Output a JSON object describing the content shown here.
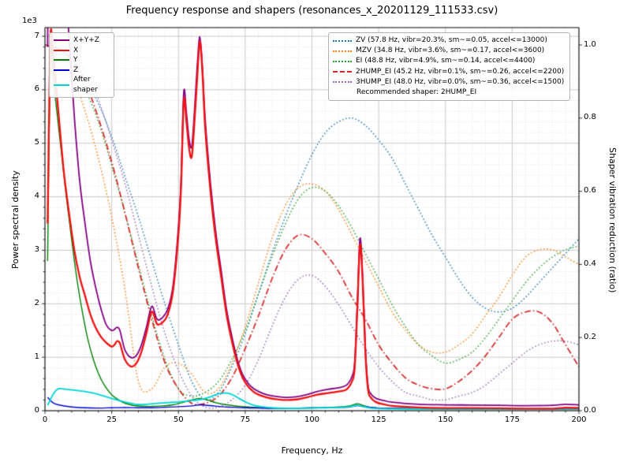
{
  "chart_data": {
    "type": "line",
    "title": "Frequency response and shapers (resonances_x_20201129_111533.csv)",
    "xlabel": "Frequency, Hz",
    "ylabel_left": "Power spectral density",
    "ylabel_right": "Shaper vibration reduction (ratio)",
    "offset_text": "1e3",
    "grid": true,
    "legend_note": "Recommended shaper: 2HUMP_EI",
    "xlim": [
      0,
      200
    ],
    "ylim_left": [
      0,
      7000
    ],
    "ylim_right": [
      0,
      1.0
    ],
    "x_ticks": {
      "values": [
        0,
        25,
        50,
        75,
        100,
        125,
        150,
        175,
        200
      ],
      "labels": [
        "0",
        "25",
        "50",
        "75",
        "100",
        "125",
        "150",
        "175",
        "200"
      ]
    },
    "y_ticks_left": {
      "values": [
        0,
        1000,
        2000,
        3000,
        4000,
        5000,
        6000,
        7000
      ],
      "labels": [
        "0",
        "1",
        "2",
        "3",
        "4",
        "5",
        "6",
        "7"
      ]
    },
    "y_ticks_right": {
      "values": [
        0,
        0.2,
        0.4,
        0.6,
        0.8,
        1.0
      ],
      "labels": [
        "0.0",
        "0.2",
        "0.4",
        "0.6",
        "0.8",
        "1.0"
      ]
    },
    "psd_series": [
      {
        "name": "X+Y+Z",
        "color": "#800080",
        "style": "solid",
        "width": 1.8,
        "x": [
          1,
          2,
          3,
          5,
          7,
          9,
          11,
          13,
          15,
          17,
          19,
          21,
          23,
          25,
          26,
          27,
          28,
          29,
          30,
          32,
          34,
          36,
          38,
          40,
          42,
          44,
          46,
          48,
          50,
          51,
          52,
          53,
          54,
          55,
          56,
          57,
          58,
          59,
          60,
          62,
          64,
          66,
          68,
          70,
          72,
          74,
          76,
          78,
          80,
          83,
          86,
          90,
          94,
          98,
          102,
          106,
          110,
          113,
          115,
          116,
          117,
          118,
          119,
          120,
          121,
          122,
          124,
          127,
          130,
          140,
          150,
          160,
          170,
          180,
          190,
          195,
          200
        ],
        "y": [
          6800,
          13600,
          12500,
          10500,
          8500,
          7000,
          5500,
          4300,
          3500,
          2800,
          2300,
          1900,
          1600,
          1500,
          1520,
          1560,
          1510,
          1310,
          1130,
          1000,
          1020,
          1210,
          1560,
          1950,
          1710,
          1740,
          1900,
          2350,
          3440,
          4350,
          5960,
          5560,
          5070,
          4940,
          5600,
          6420,
          6990,
          6400,
          5450,
          4250,
          3330,
          2620,
          1900,
          1390,
          970,
          680,
          520,
          420,
          360,
          300,
          270,
          250,
          260,
          300,
          360,
          400,
          430,
          480,
          640,
          900,
          2000,
          3220,
          2500,
          1180,
          470,
          320,
          230,
          190,
          160,
          120,
          110,
          105,
          100,
          95,
          100,
          120,
          110
        ]
      },
      {
        "name": "X",
        "color": "#ee1111",
        "style": "solid",
        "width": 2.3,
        "x": [
          1,
          2,
          3,
          5,
          7,
          9,
          11,
          13,
          15,
          17,
          19,
          21,
          23,
          25,
          26,
          27,
          28,
          29,
          30,
          32,
          34,
          36,
          38,
          40,
          42,
          44,
          46,
          48,
          50,
          51,
          52,
          53,
          54,
          55,
          56,
          57,
          58,
          59,
          60,
          62,
          64,
          66,
          68,
          70,
          72,
          74,
          76,
          78,
          80,
          83,
          86,
          90,
          94,
          98,
          102,
          106,
          110,
          113,
          115,
          116,
          117,
          118,
          119,
          120,
          121,
          122,
          124,
          127,
          130,
          140,
          150,
          160,
          170,
          180,
          190,
          195,
          200
        ],
        "y": [
          3500,
          6900,
          6700,
          5600,
          4500,
          3700,
          3000,
          2500,
          2150,
          1800,
          1550,
          1380,
          1270,
          1200,
          1230,
          1300,
          1270,
          1100,
          950,
          830,
          870,
          1080,
          1450,
          1850,
          1620,
          1650,
          1800,
          2250,
          3300,
          4200,
          5800,
          5400,
          4900,
          4750,
          5400,
          6200,
          6900,
          6300,
          5300,
          4100,
          3200,
          2500,
          1800,
          1300,
          900,
          620,
          460,
          360,
          300,
          250,
          220,
          200,
          210,
          250,
          300,
          330,
          360,
          400,
          550,
          800,
          1900,
          3100,
          2400,
          1100,
          400,
          250,
          160,
          120,
          90,
          60,
          50,
          50,
          45,
          40,
          40,
          55,
          50
        ]
      },
      {
        "name": "Y",
        "color": "#008000",
        "style": "solid",
        "width": 1.4,
        "x": [
          1,
          2,
          3,
          4,
          6,
          8,
          10,
          12,
          14,
          16,
          18,
          20,
          22,
          25,
          28,
          30,
          33,
          36,
          40,
          44,
          48,
          52,
          55,
          58,
          61,
          64,
          68,
          72,
          76,
          80,
          85,
          90,
          95,
          100,
          105,
          110,
          114,
          117,
          119,
          122,
          126,
          130,
          140,
          150,
          160,
          170,
          180,
          190,
          200
        ],
        "y": [
          2800,
          6600,
          6300,
          5800,
          4900,
          4000,
          3200,
          2450,
          1850,
          1350,
          980,
          700,
          500,
          300,
          190,
          140,
          100,
          85,
          80,
          90,
          110,
          160,
          200,
          230,
          200,
          150,
          110,
          85,
          70,
          60,
          50,
          48,
          50,
          55,
          60,
          70,
          90,
          130,
          100,
          60,
          45,
          40,
          35,
          32,
          30,
          30,
          30,
          35,
          40
        ]
      },
      {
        "name": "Z",
        "color": "#0000cc",
        "style": "solid",
        "width": 1.4,
        "x": [
          1,
          3,
          5,
          10,
          15,
          20,
          25,
          30,
          35,
          40,
          45,
          50,
          55,
          58,
          62,
          66,
          70,
          75,
          80,
          85,
          90,
          95,
          100,
          105,
          110,
          114,
          117,
          119,
          125,
          130,
          140,
          150,
          160,
          170,
          180,
          190,
          200
        ],
        "y": [
          250,
          150,
          110,
          70,
          55,
          50,
          55,
          60,
          55,
          55,
          65,
          75,
          90,
          110,
          95,
          75,
          65,
          55,
          50,
          45,
          45,
          48,
          52,
          56,
          60,
          70,
          95,
          80,
          50,
          45,
          40,
          35,
          32,
          30,
          30,
          32,
          35
        ]
      },
      {
        "name": "After shaper",
        "color": "#00d4d4",
        "style": "solid",
        "width": 1.8,
        "x": [
          1,
          3,
          5,
          8,
          11,
          14,
          17,
          20,
          23,
          26,
          29,
          32,
          35,
          38,
          41,
          44,
          47,
          50,
          53,
          56,
          59,
          62,
          64,
          66,
          68,
          70,
          72,
          75,
          78,
          81,
          85,
          90,
          95,
          100,
          105,
          110,
          114,
          117,
          119,
          122,
          126,
          130,
          140,
          150,
          160,
          170,
          180,
          190,
          200
        ],
        "y": [
          100,
          300,
          410,
          400,
          385,
          365,
          340,
          305,
          260,
          215,
          175,
          140,
          115,
          120,
          135,
          145,
          155,
          165,
          180,
          195,
          215,
          260,
          300,
          325,
          330,
          305,
          250,
          165,
          105,
          75,
          55,
          45,
          45,
          50,
          55,
          60,
          75,
          100,
          80,
          50,
          40,
          35,
          32,
          30,
          28,
          28,
          28,
          30,
          32
        ]
      }
    ],
    "shaper_x": [
      0,
      5,
      10,
      15,
      20,
      25,
      30,
      35,
      40,
      45,
      50,
      55,
      60,
      65,
      70,
      75,
      80,
      85,
      90,
      95,
      100,
      105,
      110,
      115,
      120,
      125,
      130,
      135,
      140,
      145,
      150,
      155,
      160,
      165,
      170,
      175,
      180,
      185,
      190,
      195,
      200
    ],
    "shaper_series": [
      {
        "name": "ZV",
        "label": "ZV (57.8 Hz, vibr=20.3%, sm~=0.05, accel<=13000)",
        "color": "#1f77b4",
        "style": "dotted",
        "width": 1.4,
        "y": [
          1.0,
          0.99,
          0.96,
          0.91,
          0.84,
          0.75,
          0.64,
          0.53,
          0.41,
          0.29,
          0.18,
          0.08,
          0.03,
          0.05,
          0.12,
          0.21,
          0.32,
          0.43,
          0.53,
          0.62,
          0.7,
          0.76,
          0.79,
          0.8,
          0.78,
          0.74,
          0.69,
          0.62,
          0.55,
          0.48,
          0.42,
          0.36,
          0.31,
          0.28,
          0.27,
          0.28,
          0.31,
          0.35,
          0.39,
          0.43,
          0.47
        ]
      },
      {
        "name": "MZV",
        "label": "MZV (34.8 Hz, vibr=3.6%, sm~=0.17, accel<=3600)",
        "color": "#ff7f0e",
        "style": "dotted",
        "width": 1.4,
        "y": [
          1.0,
          0.98,
          0.92,
          0.82,
          0.69,
          0.53,
          0.33,
          0.08,
          0.06,
          0.12,
          0.13,
          0.1,
          0.05,
          0.06,
          0.13,
          0.23,
          0.35,
          0.47,
          0.56,
          0.61,
          0.62,
          0.6,
          0.55,
          0.48,
          0.41,
          0.34,
          0.27,
          0.22,
          0.18,
          0.16,
          0.16,
          0.18,
          0.21,
          0.26,
          0.31,
          0.37,
          0.42,
          0.44,
          0.44,
          0.42,
          0.4
        ]
      },
      {
        "name": "EI",
        "label": "EI (48.8 Hz, vibr=4.9%, sm~=0.14, accel<=4400)",
        "color": "#2ca02c",
        "style": "dotted",
        "width": 1.4,
        "y": [
          1.0,
          0.99,
          0.95,
          0.88,
          0.79,
          0.67,
          0.54,
          0.4,
          0.26,
          0.14,
          0.06,
          0.04,
          0.05,
          0.08,
          0.14,
          0.22,
          0.32,
          0.42,
          0.51,
          0.58,
          0.61,
          0.6,
          0.56,
          0.5,
          0.43,
          0.36,
          0.29,
          0.23,
          0.18,
          0.15,
          0.13,
          0.14,
          0.16,
          0.2,
          0.25,
          0.3,
          0.35,
          0.39,
          0.42,
          0.44,
          0.45
        ]
      },
      {
        "name": "2HUMP_EI",
        "label": "2HUMP_EI (45.2 Hz, vibr=0.1%, sm~=0.26, accel<=2200)",
        "color": "#d62728",
        "style": "dashdot",
        "width": 1.7,
        "y": [
          1.0,
          0.99,
          0.96,
          0.9,
          0.8,
          0.68,
          0.54,
          0.39,
          0.25,
          0.13,
          0.06,
          0.02,
          0.02,
          0.04,
          0.09,
          0.17,
          0.26,
          0.36,
          0.44,
          0.48,
          0.47,
          0.43,
          0.38,
          0.31,
          0.25,
          0.18,
          0.13,
          0.09,
          0.07,
          0.06,
          0.06,
          0.08,
          0.11,
          0.15,
          0.2,
          0.25,
          0.27,
          0.27,
          0.24,
          0.18,
          0.12
        ]
      },
      {
        "name": "3HUMP_EI",
        "label": "3HUMP_EI (48.0 Hz, vibr=0.0%, sm~=0.36, accel<=1500)",
        "color": "#9467bd",
        "style": "dotted",
        "width": 1.4,
        "y": [
          1.0,
          0.99,
          0.97,
          0.93,
          0.85,
          0.74,
          0.62,
          0.48,
          0.34,
          0.21,
          0.11,
          0.04,
          0.01,
          0.01,
          0.03,
          0.07,
          0.14,
          0.23,
          0.31,
          0.36,
          0.37,
          0.34,
          0.29,
          0.23,
          0.17,
          0.12,
          0.08,
          0.05,
          0.04,
          0.03,
          0.03,
          0.04,
          0.05,
          0.07,
          0.1,
          0.13,
          0.16,
          0.18,
          0.19,
          0.19,
          0.18
        ]
      }
    ]
  }
}
